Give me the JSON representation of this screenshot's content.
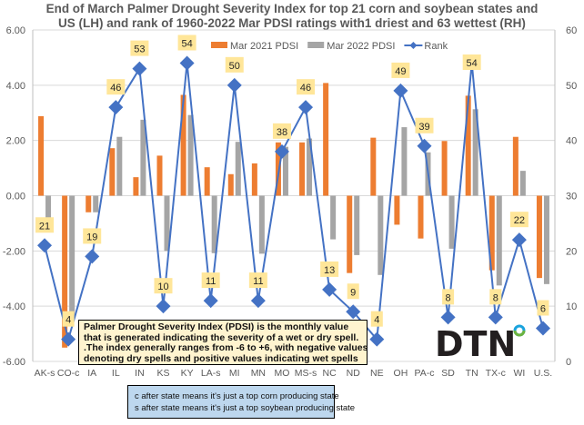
{
  "chart_data": {
    "type": "bar",
    "title_lines": [
      "End of March Palmer Drought Severity Index for top 21  corn and soybean states and",
      "US (LH) and rank of 1960-2022 Mar PDSI ratings with1 driest and 63 wettest (RH)"
    ],
    "categories": [
      "AK-s",
      "CO-c",
      "IA",
      "IL",
      "IN",
      "KS",
      "KY",
      "LA-s",
      "MI",
      "MN",
      "MO",
      "MS-s",
      "NC",
      "ND",
      "NE",
      "OH",
      "PA-c",
      "SD",
      "TN",
      "TX-c",
      "WI",
      "U.S."
    ],
    "series": [
      {
        "name": "Mar 2021 PDSI",
        "axis": "left",
        "type": "bar",
        "color": "#ed7d31",
        "values": [
          2.88,
          -5.5,
          -0.6,
          1.72,
          0.67,
          1.45,
          3.65,
          1.03,
          0.78,
          1.17,
          1.93,
          1.93,
          4.08,
          -2.8,
          2.1,
          -1.05,
          -1.55,
          1.98,
          3.62,
          -2.7,
          2.13,
          -2.98
        ]
      },
      {
        "name": "Mar 2022 PDSI",
        "axis": "left",
        "type": "bar",
        "color": "#a5a5a5",
        "values": [
          -0.88,
          -4.5,
          -0.6,
          2.13,
          2.75,
          -2.0,
          2.92,
          -2.08,
          1.95,
          -2.1,
          1.77,
          2.07,
          -1.58,
          -2.15,
          -2.87,
          2.48,
          1.57,
          -1.92,
          3.13,
          -3.25,
          0.9,
          -3.2
        ]
      },
      {
        "name": "Rank",
        "axis": "right",
        "type": "line",
        "color": "#4472c4",
        "values": [
          21,
          4,
          19,
          46,
          53,
          10,
          54,
          11,
          50,
          11,
          38,
          46,
          13,
          9,
          4,
          49,
          39,
          8,
          54,
          8,
          22,
          6
        ]
      }
    ],
    "left_axis": {
      "min": -6,
      "max": 6,
      "step": 2,
      "ticks": [
        "6.00",
        "4.00",
        "2.00",
        "0.00",
        "-2.00",
        "-4.00",
        "-6.00"
      ]
    },
    "right_axis": {
      "min": 0,
      "max": 60,
      "step": 10,
      "ticks": [
        "60",
        "50",
        "40",
        "30",
        "20",
        "10",
        "0"
      ]
    },
    "grid": true,
    "legend_position": "top-right"
  },
  "note": {
    "lines": [
      "Palmer Drought Severity Index (PDSI) is the monthly value",
      "that is generated indicating the severity of a wet or dry spell.",
      ".The index generally ranges from -6 to +6, with negative values",
      "denoting dry spells and positive values indicating wet spells"
    ]
  },
  "footnote": {
    "lines": [
      "c after state means it's just a top corn producing state",
      "s after state means it's just a top soybean producing state"
    ]
  },
  "logo": {
    "text": "DTN"
  },
  "colors": {
    "orange": "#ed7d31",
    "gray": "#a5a5a5",
    "blue": "#4472c4",
    "label_bg": "#ffe699",
    "note_bg": "#fff4cf",
    "footnote_bg": "#bdd7ee"
  }
}
